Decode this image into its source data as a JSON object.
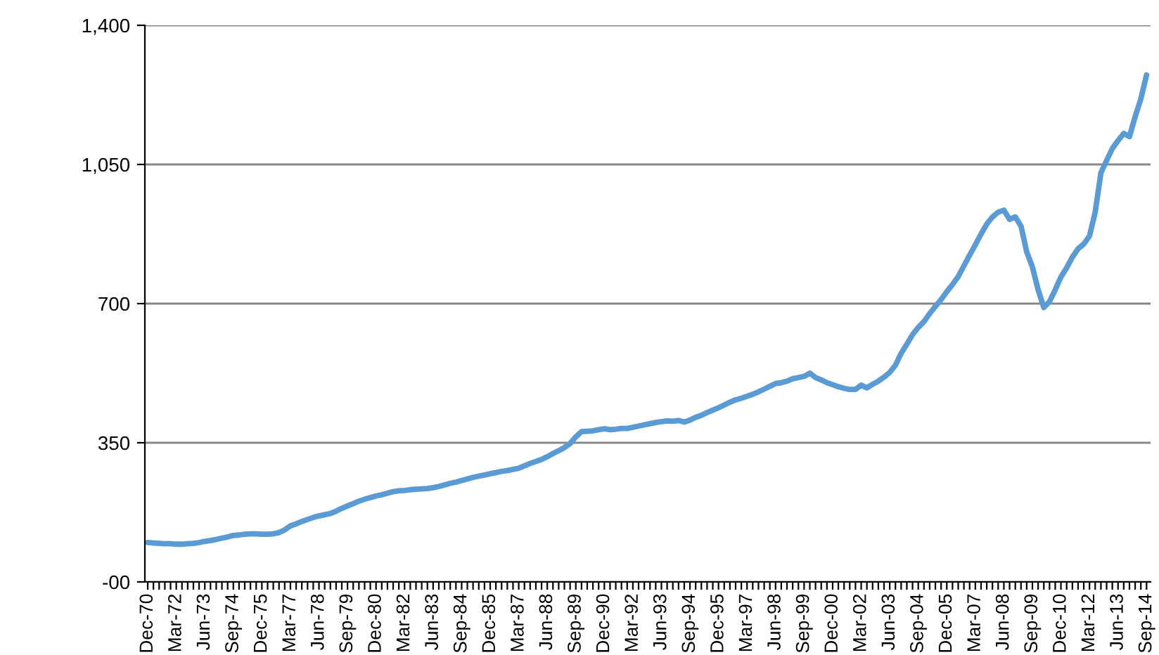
{
  "chart_data": {
    "type": "line",
    "categories": [
      "Dec-70",
      null,
      null,
      null,
      null,
      "Mar-72",
      null,
      null,
      null,
      null,
      "Jun-73",
      null,
      null,
      null,
      null,
      "Sep-74",
      null,
      null,
      null,
      null,
      "Dec-75",
      null,
      null,
      null,
      null,
      "Mar-77",
      null,
      null,
      null,
      null,
      "Jun-78",
      null,
      null,
      null,
      null,
      "Sep-79",
      null,
      null,
      null,
      null,
      "Dec-80",
      null,
      null,
      null,
      null,
      "Mar-82",
      null,
      null,
      null,
      null,
      "Jun-83",
      null,
      null,
      null,
      null,
      "Sep-84",
      null,
      null,
      null,
      null,
      "Dec-85",
      null,
      null,
      null,
      null,
      "Mar-87",
      null,
      null,
      null,
      null,
      "Jun-88",
      null,
      null,
      null,
      null,
      "Sep-89",
      null,
      null,
      null,
      null,
      "Dec-90",
      null,
      null,
      null,
      null,
      "Mar-92",
      null,
      null,
      null,
      null,
      "Jun-93",
      null,
      null,
      null,
      null,
      "Sep-94",
      null,
      null,
      null,
      null,
      "Dec-95",
      null,
      null,
      null,
      null,
      "Mar-97",
      null,
      null,
      null,
      null,
      "Jun-98",
      null,
      null,
      null,
      null,
      "Sep-99",
      null,
      null,
      null,
      null,
      "Dec-00",
      null,
      null,
      null,
      null,
      "Mar-02",
      null,
      null,
      null,
      null,
      "Jun-03",
      null,
      null,
      null,
      null,
      "Sep-04",
      null,
      null,
      null,
      null,
      "Dec-05",
      null,
      null,
      null,
      null,
      "Mar-07",
      null,
      null,
      null,
      null,
      "Jun-08",
      null,
      null,
      null,
      null,
      "Sep-09",
      null,
      null,
      null,
      null,
      "Dec-10",
      null,
      null,
      null,
      null,
      "Mar-12",
      null,
      null,
      null,
      null,
      "Jun-13",
      null,
      null,
      null,
      null,
      "Sep-14"
    ],
    "series": [
      {
        "color": "#5b9bd5",
        "values": [
          99,
          98,
          97,
          96,
          96,
          95,
          95,
          96,
          97,
          99,
          102,
          104,
          107,
          110,
          113,
          117,
          118,
          120,
          121,
          121,
          120,
          120,
          121,
          124,
          131,
          141,
          146,
          152,
          157,
          162,
          166,
          169,
          172,
          178,
          185,
          191,
          197,
          203,
          208,
          212,
          216,
          219,
          223,
          227,
          229,
          230,
          232,
          233,
          234,
          235,
          237,
          240,
          244,
          248,
          251,
          255,
          259,
          263,
          266,
          269,
          272,
          275,
          278,
          280,
          283,
          286,
          292,
          298,
          303,
          308,
          315,
          323,
          330,
          338,
          348,
          365,
          378,
          379,
          380,
          383,
          385,
          383,
          384,
          386,
          386,
          389,
          392,
          395,
          398,
          401,
          403,
          405,
          404,
          406,
          402,
          407,
          414,
          419,
          426,
          432,
          438,
          445,
          452,
          458,
          462,
          467,
          472,
          478,
          485,
          492,
          499,
          501,
          505,
          511,
          514,
          517,
          525,
          514,
          508,
          501,
          496,
          491,
          487,
          484,
          484,
          495,
          488,
          497,
          505,
          515,
          527,
          545,
          575,
          598,
          622,
          640,
          655,
          675,
          693,
          710,
          730,
          748,
          768,
          795,
          822,
          848,
          875,
          900,
          918,
          930,
          935,
          912,
          918,
          895,
          830,
          792,
          735,
          690,
          705,
          735,
          767,
          790,
          817,
          838,
          850,
          870,
          930,
          1029,
          1060,
          1090,
          1110,
          1128,
          1120,
          1170,
          1215,
          1275
        ]
      }
    ],
    "ylim": [
      0,
      1400
    ],
    "yticks": [
      {
        "value": 0,
        "label": "-00"
      },
      {
        "value": 350,
        "label": "350"
      },
      {
        "value": 700,
        "label": "700"
      },
      {
        "value": 1050,
        "label": "1,050"
      },
      {
        "value": 1400,
        "label": "1,400"
      }
    ],
    "grid": "y",
    "line_style": "solid",
    "marker": "none"
  }
}
